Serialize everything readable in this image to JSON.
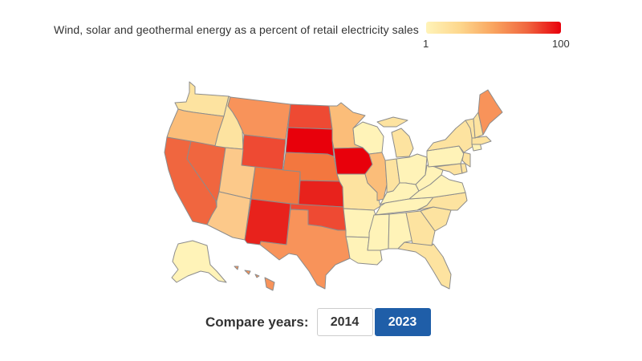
{
  "legend": {
    "title": "Wind, solar and geothermal energy as a percent of retail electricity sales",
    "min_label": "1",
    "max_label": "100",
    "gradient": [
      "#fff3b8",
      "#fdd78d",
      "#f9a45f",
      "#f0663f",
      "#e8000b"
    ]
  },
  "controls": {
    "label": "Compare years:",
    "years": [
      {
        "label": "2014",
        "selected": false
      },
      {
        "label": "2023",
        "selected": true
      }
    ]
  },
  "map": {
    "region": "United States",
    "states": {
      "WA": "#fde3a0",
      "OR": "#fbbd79",
      "CA": "#f0663f",
      "NV": "#f0663f",
      "ID": "#fde3a0",
      "MT": "#f8935a",
      "WY": "#ee4a33",
      "UT": "#fcc98a",
      "AZ": "#fcc98a",
      "CO": "#f3773f",
      "NM": "#e8221c",
      "ND": "#ee4a33",
      "SD": "#e8000b",
      "NE": "#f3773f",
      "KS": "#e8221c",
      "OK": "#ee4a33",
      "TX": "#f8935a",
      "MN": "#fbbd79",
      "IA": "#e8000b",
      "MO": "#fde3a0",
      "AR": "#fff3b8",
      "LA": "#fff3b8",
      "WI": "#fff3b8",
      "IL": "#fbbd79",
      "MI": "#fde3a0",
      "IN": "#fde3a0",
      "OH": "#fff3b8",
      "KY": "#fff3b8",
      "TN": "#fff3b8",
      "MS": "#fff3b8",
      "AL": "#fff3b8",
      "GA": "#fde3a0",
      "FL": "#fde3a0",
      "SC": "#fde3a0",
      "NC": "#fde3a0",
      "VA": "#fff3b8",
      "WV": "#fff3b8",
      "PA": "#fff3b8",
      "NY": "#fde3a0",
      "VT": "#fde3a0",
      "NH": "#fde3a0",
      "ME": "#f8935a",
      "MA": "#fde3a0",
      "CT": "#fff3b8",
      "NJ": "#fde3a0",
      "DE": "#fde3a0",
      "MD": "#fde3a0",
      "AK": "#fff3b8",
      "HI": "#f8935a"
    }
  }
}
